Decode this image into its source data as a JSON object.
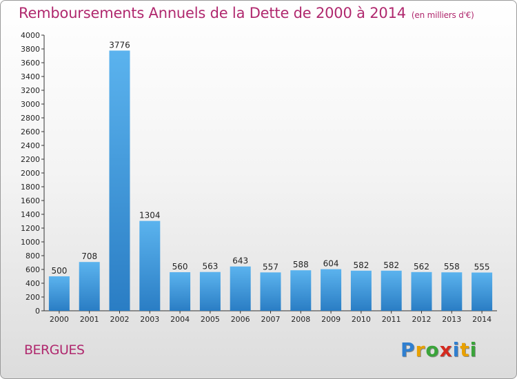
{
  "header": {
    "title": "Remboursements Annuels de la Dette de 2000 à 2014",
    "unit": "(en milliers d'€)"
  },
  "footer": {
    "town": "BERGUES",
    "brand": "Proxiti",
    "brand_letters": [
      {
        "char": "P",
        "color": "#2f7fd0"
      },
      {
        "char": "r",
        "color": "#e8a000"
      },
      {
        "char": "o",
        "color": "#3aa43a"
      },
      {
        "char": "x",
        "color": "#d42a1f"
      },
      {
        "char": "i",
        "color": "#2f7fd0"
      },
      {
        "char": "t",
        "color": "#e8a000"
      },
      {
        "char": "i",
        "color": "#3aa43a"
      }
    ]
  },
  "colors": {
    "bar_light": "#5bb3ee",
    "bar_dark": "#2a7dc4",
    "accent": "#b0286e"
  },
  "chart_data": {
    "type": "bar",
    "categories": [
      "2000",
      "2001",
      "2002",
      "2003",
      "2004",
      "2005",
      "2006",
      "2007",
      "2008",
      "2009",
      "2010",
      "2011",
      "2012",
      "2013",
      "2014"
    ],
    "values": [
      500,
      708,
      3776,
      1304,
      560,
      563,
      643,
      557,
      588,
      604,
      582,
      582,
      562,
      558,
      555
    ],
    "ylim": [
      0,
      4000
    ],
    "yticks": [
      0,
      200,
      400,
      600,
      800,
      1000,
      1200,
      1400,
      1600,
      1800,
      2000,
      2200,
      2400,
      2600,
      2800,
      3000,
      3200,
      3400,
      3600,
      3800,
      4000
    ],
    "grid": false
  }
}
